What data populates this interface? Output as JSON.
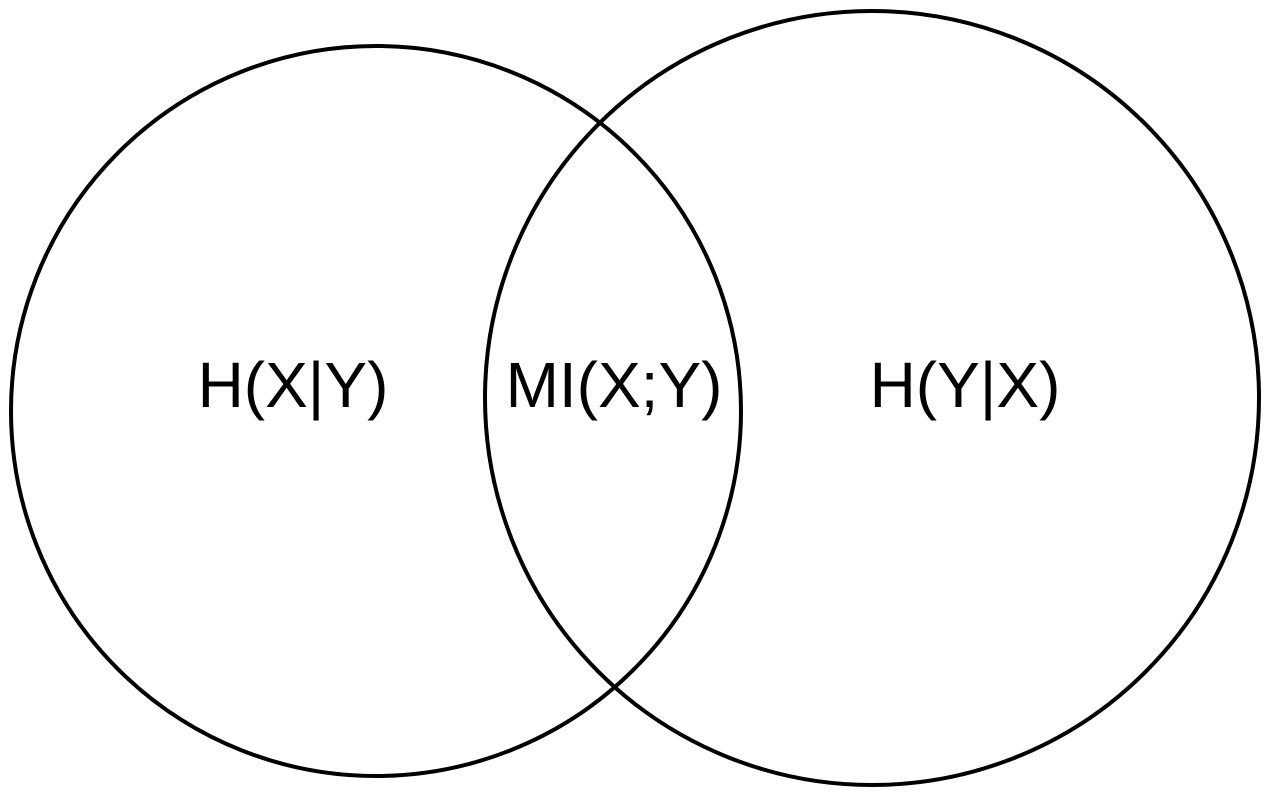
{
  "diagram": {
    "type": "venn",
    "sets": [
      {
        "id": "left",
        "region_label": "H(X|Y)"
      },
      {
        "id": "right",
        "region_label": "H(Y|X)"
      }
    ],
    "intersection_label": "MI(X;Y)",
    "colors": {
      "stroke": "#000000",
      "text": "#000000",
      "background": "#ffffff"
    }
  }
}
